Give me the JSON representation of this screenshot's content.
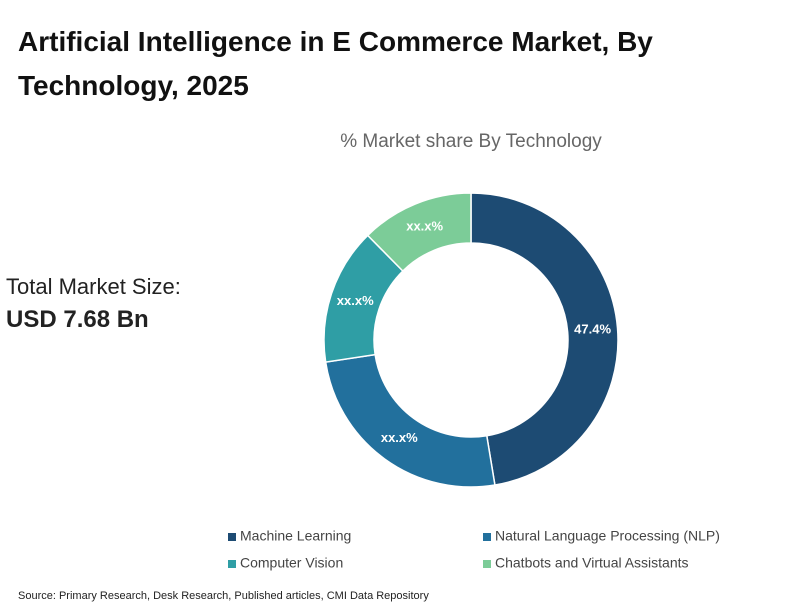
{
  "chart_data": {
    "type": "donut",
    "title": "Artificial Intelligence in E Commerce Market, By Technology, 2025",
    "subtitle": "% Market share By Technology",
    "total_label": "Total Market Size:",
    "total_value": "USD 7.68 Bn",
    "categories": [
      "Machine Learning",
      "Natural Language Processing (NLP)",
      "Computer Vision",
      "Chatbots and Virtual Assistants"
    ],
    "values": [
      47.4,
      25.2,
      15.0,
      12.4
    ],
    "value_labels": [
      "47.4%",
      "xx.x%",
      "xx.x%",
      "xx.x%"
    ],
    "colors": [
      "#1d4b73",
      "#22709d",
      "#2f9ea5",
      "#7ccc98"
    ],
    "source": "Source: Primary Research, Desk Research, Published articles, CMI Data Repository"
  }
}
